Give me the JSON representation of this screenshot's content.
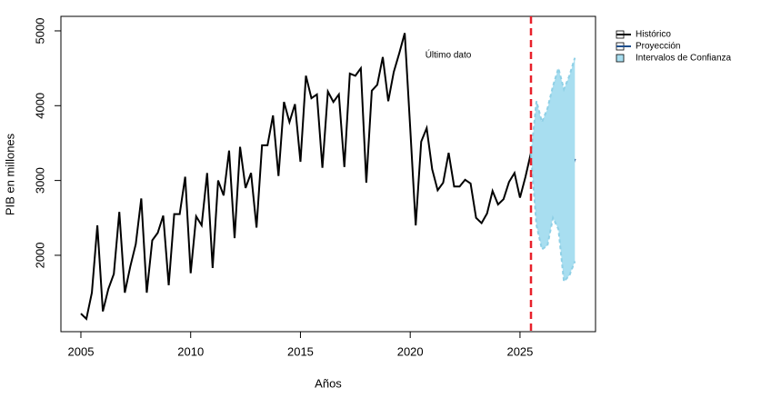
{
  "chart_data": {
    "type": "line",
    "x_label": "Años",
    "y_label": "PIB en millones",
    "annotation": "Último dato",
    "xlim": [
      2004.09,
      2028.44
    ],
    "ylim": [
      979,
      5194
    ],
    "xticks": [
      2005,
      2010,
      2015,
      2020,
      2025
    ],
    "yticks": [
      2000,
      3000,
      4000,
      5000
    ],
    "vline": 2025.5,
    "vline_color": "#e8212b",
    "legend": "top-right",
    "series": [
      {
        "name": "Histórico",
        "color": "#000000",
        "x": [
          2005,
          2005.25,
          2005.5,
          2005.75,
          2006,
          2006.25,
          2006.5,
          2006.75,
          2007,
          2007.25,
          2007.5,
          2007.75,
          2008,
          2008.25,
          2008.5,
          2008.75,
          2009,
          2009.25,
          2009.5,
          2009.75,
          2010,
          2010.25,
          2010.5,
          2010.75,
          2011,
          2011.25,
          2011.5,
          2011.75,
          2012,
          2012.25,
          2012.5,
          2012.75,
          2013,
          2013.25,
          2013.5,
          2013.75,
          2014,
          2014.25,
          2014.5,
          2014.75,
          2015,
          2015.25,
          2015.5,
          2015.75,
          2016,
          2016.25,
          2016.5,
          2016.75,
          2017,
          2017.25,
          2017.5,
          2017.75,
          2018,
          2018.25,
          2018.5,
          2018.75,
          2019,
          2019.25,
          2019.5,
          2019.75,
          2020,
          2020.25,
          2020.5,
          2020.75,
          2021,
          2021.25,
          2021.5,
          2021.75,
          2022,
          2022.25,
          2022.5,
          2022.75,
          2023,
          2023.25,
          2023.5,
          2023.75,
          2024,
          2024.25,
          2024.5,
          2024.75,
          2025,
          2025.25,
          2025.5
        ],
        "values": [
          1220,
          1150,
          1500,
          2400,
          1250,
          1550,
          1750,
          2580,
          1500,
          1850,
          2150,
          2760,
          1500,
          2200,
          2300,
          2530,
          1600,
          2550,
          2550,
          3050,
          1760,
          2520,
          2400,
          3100,
          1830,
          3000,
          2800,
          3400,
          2230,
          3450,
          2900,
          3100,
          2370,
          3470,
          3470,
          3870,
          3060,
          4050,
          3780,
          4020,
          3250,
          4400,
          4100,
          4150,
          3170,
          4190,
          4050,
          4150,
          3180,
          4430,
          4400,
          4500,
          2970,
          4200,
          4280,
          4650,
          4060,
          4450,
          4700,
          4970,
          3700,
          2400,
          3520,
          3700,
          3150,
          2870,
          2970,
          3370,
          2920,
          2920,
          3010,
          2960,
          2500,
          2430,
          2560,
          2860,
          2680,
          2750,
          2980,
          3100,
          2770,
          3050,
          3370
        ]
      },
      {
        "name": "Proyección",
        "color": "#1f4e8c",
        "x": [
          2025.5,
          2025.75,
          2026,
          2026.25,
          2026.5,
          2026.75,
          2027,
          2027.25,
          2027.5
        ],
        "values": [
          3340,
          3390,
          2930,
          3080,
          3310,
          3320,
          2920,
          3080,
          3290
        ]
      },
      {
        "name": "Intervalos de Confianza",
        "color": "#a8def0",
        "x": [
          2025.5,
          2025.75,
          2026,
          2026.25,
          2026.5,
          2026.75,
          2027,
          2027.25,
          2027.5
        ],
        "upper": [
          3340,
          4060,
          3780,
          3960,
          4260,
          4500,
          4220,
          4400,
          4640
        ],
        "lower": [
          3340,
          2400,
          2080,
          2130,
          2500,
          2350,
          1650,
          1730,
          1920
        ]
      }
    ]
  }
}
